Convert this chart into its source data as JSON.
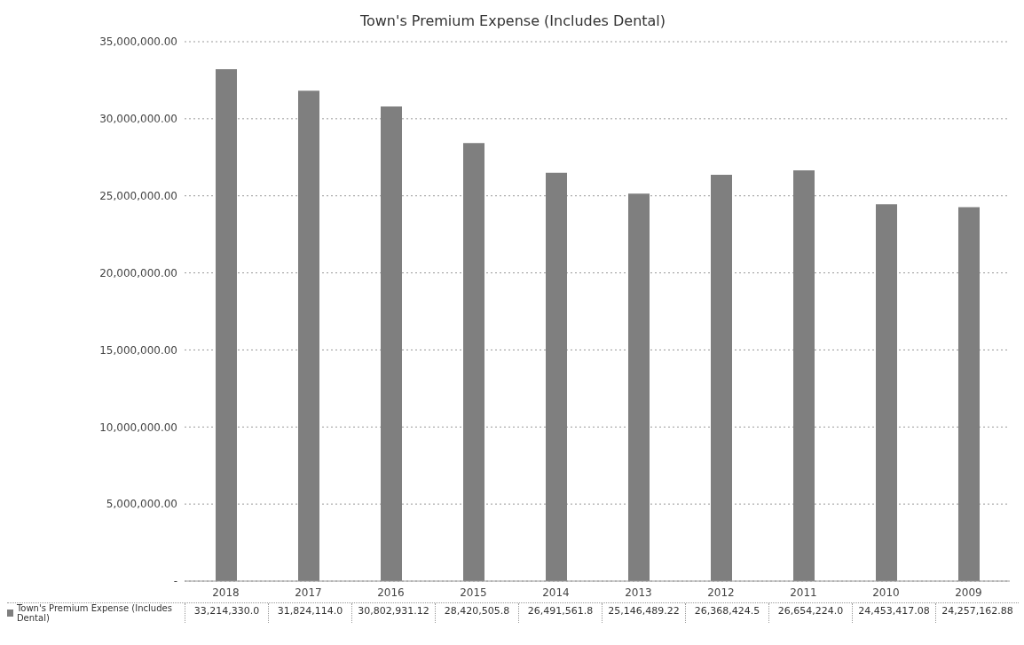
{
  "chart_data": {
    "type": "bar",
    "title": "Town's Premium Expense (Includes Dental)",
    "categories": [
      "2018",
      "2017",
      "2016",
      "2015",
      "2014",
      "2013",
      "2012",
      "2011",
      "2010",
      "2009"
    ],
    "series": [
      {
        "name": "Town's Premium Expense (Includes Dental)",
        "color": "#7f7f7f",
        "values": [
          33214330,
          31824114,
          30802931.12,
          28420505.8,
          26491561.8,
          25146489.22,
          26368424.5,
          26654224,
          24453417.08,
          24257162.88
        ],
        "value_labels": [
          "33,214,330.0",
          "31,824,114.0",
          "30,802,931.12",
          "28,420,505.8",
          "26,491,561.8",
          "25,146,489.22",
          "26,368,424.5",
          "26,654,224.0",
          "24,453,417.08",
          "24,257,162.88"
        ]
      }
    ],
    "ylim": [
      0,
      35000000
    ],
    "yticks": [
      {
        "value": 0,
        "label": "-"
      },
      {
        "value": 5000000,
        "label": "5,000,000.00"
      },
      {
        "value": 10000000,
        "label": "10,000,000.00"
      },
      {
        "value": 15000000,
        "label": "15,000,000.00"
      },
      {
        "value": 20000000,
        "label": "20,000,000.00"
      },
      {
        "value": 25000000,
        "label": "25,000,000.00"
      },
      {
        "value": 30000000,
        "label": "30,000,000.00"
      },
      {
        "value": 35000000,
        "label": "35,000,000.00"
      }
    ],
    "grid": "y",
    "legend": "bottom"
  }
}
